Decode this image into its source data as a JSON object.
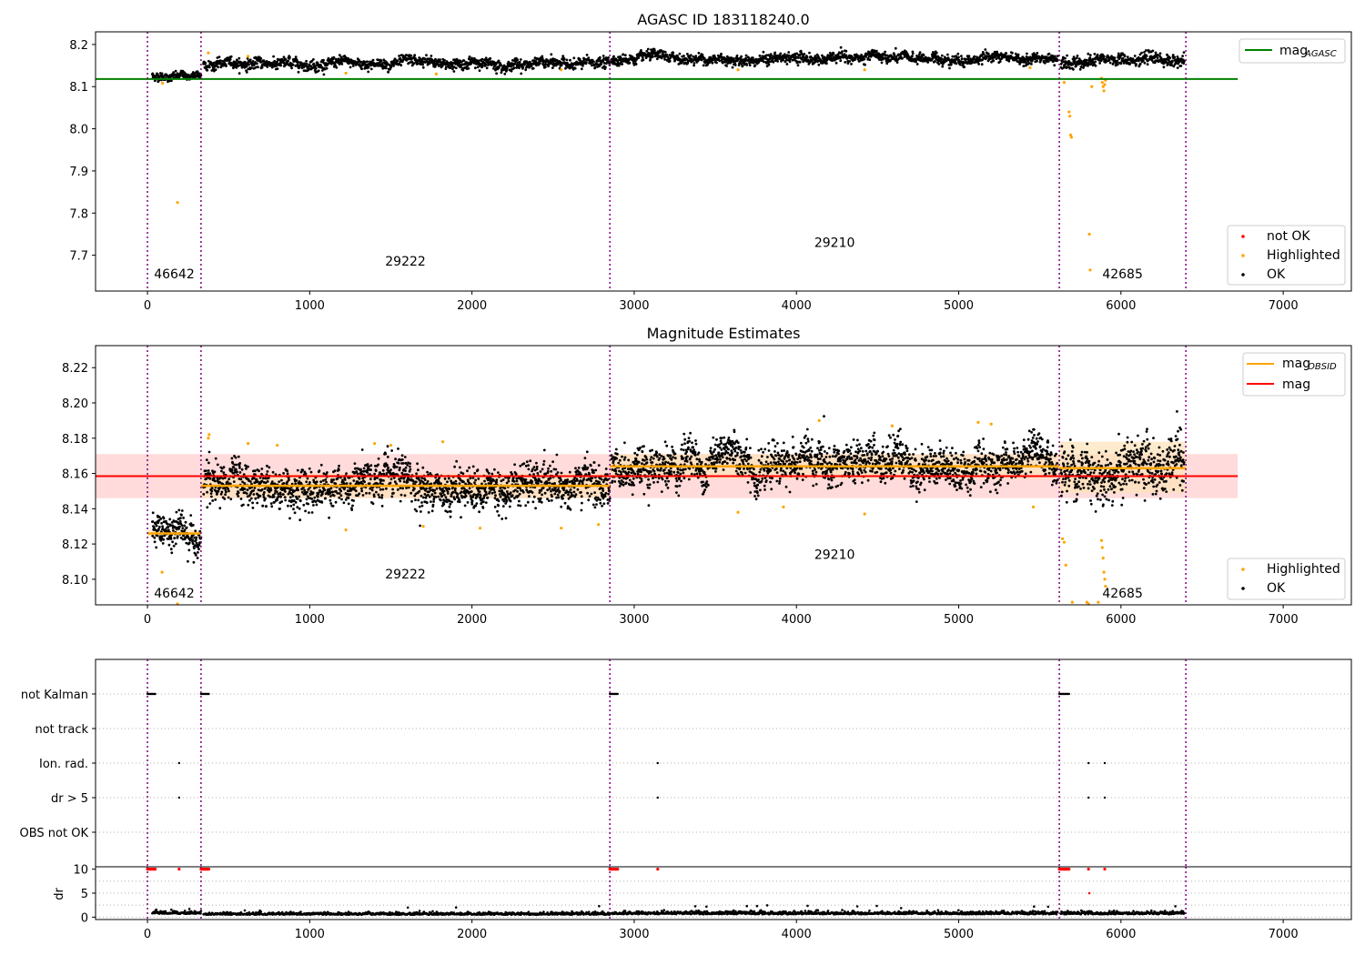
{
  "colors": {
    "ok": "#000000",
    "highlighted": "#ffa500",
    "not_ok": "#ff0000",
    "agasc_line": "#008000",
    "mean_line": "#ff0000",
    "obsid_line": "#ffa500",
    "vline": "#800080",
    "band_mean": "#ffcccc",
    "band_obsid": "#fde3b8"
  },
  "chart_data": [
    {
      "type": "scatter",
      "title": "AGASC ID 183118240.0",
      "xlim": [
        -320,
        7420
      ],
      "ylim": [
        7.615,
        8.23
      ],
      "xticks": [
        0,
        1000,
        2000,
        3000,
        4000,
        5000,
        6000,
        7000
      ],
      "yticks": [
        7.7,
        7.8,
        7.9,
        8.0,
        8.1,
        8.2
      ],
      "ytick_labels": [
        "7.7",
        "7.8",
        "7.9",
        "8.0",
        "8.1",
        "8.2"
      ],
      "reference_line": {
        "name": "mag",
        "subscript": "AGASC",
        "value": 8.118,
        "x_range": [
          -320,
          6720
        ]
      },
      "legend_upper": [
        {
          "label": "mag",
          "subscript": "AGASC",
          "kind": "line",
          "color_key": "agasc_line"
        }
      ],
      "legend_lower": [
        {
          "label": "not OK",
          "kind": "marker",
          "color_key": "not_ok"
        },
        {
          "label": "Highlighted",
          "kind": "marker",
          "color_key": "highlighted"
        },
        {
          "label": "OK",
          "kind": "marker",
          "color_key": "ok"
        }
      ],
      "obsid_boundaries": [
        0,
        330,
        2850,
        5620,
        6400
      ],
      "obsid_labels": [
        {
          "text": "46642",
          "x": 165,
          "y": 7.645
        },
        {
          "text": "29222",
          "x": 1590,
          "y": 7.675
        },
        {
          "text": "29210",
          "x": 4235,
          "y": 7.72
        },
        {
          "text": "42685",
          "x": 6010,
          "y": 7.645
        }
      ],
      "segments": [
        {
          "obsid": "46642",
          "x": [
            30,
            330
          ],
          "level": 8.125,
          "noise": 0.008
        },
        {
          "obsid": "29222",
          "x": [
            345,
            2850
          ],
          "level": 8.155,
          "noise": 0.01
        },
        {
          "obsid": "29210",
          "x": [
            2860,
            5610
          ],
          "level": 8.166,
          "noise": 0.01
        },
        {
          "obsid": "42685",
          "x": [
            5630,
            6390
          ],
          "level": 8.163,
          "noise": 0.011
        }
      ],
      "highlighted_points": [
        {
          "x": 185,
          "y": 7.825
        },
        {
          "x": 93,
          "y": 8.108
        },
        {
          "x": 375,
          "y": 8.18
        },
        {
          "x": 620,
          "y": 8.172
        },
        {
          "x": 1223,
          "y": 8.132
        },
        {
          "x": 1780,
          "y": 8.13
        },
        {
          "x": 2550,
          "y": 8.14
        },
        {
          "x": 3640,
          "y": 8.14
        },
        {
          "x": 4420,
          "y": 8.14
        },
        {
          "x": 5440,
          "y": 8.145
        },
        {
          "x": 5650,
          "y": 8.11
        },
        {
          "x": 5680,
          "y": 8.04
        },
        {
          "x": 5685,
          "y": 8.03
        },
        {
          "x": 5690,
          "y": 7.985
        },
        {
          "x": 5695,
          "y": 7.98
        },
        {
          "x": 5805,
          "y": 7.75
        },
        {
          "x": 5810,
          "y": 7.665
        },
        {
          "x": 5820,
          "y": 8.1
        },
        {
          "x": 5880,
          "y": 8.12
        },
        {
          "x": 5885,
          "y": 8.11
        },
        {
          "x": 5890,
          "y": 8.1
        },
        {
          "x": 5895,
          "y": 8.09
        },
        {
          "x": 5900,
          "y": 8.105
        },
        {
          "x": 5905,
          "y": 8.115
        }
      ]
    },
    {
      "type": "scatter",
      "title": "Magnitude Estimates",
      "xlim": [
        -320,
        7420
      ],
      "ylim": [
        8.0855,
        8.2325
      ],
      "xticks": [
        0,
        1000,
        2000,
        3000,
        4000,
        5000,
        6000,
        7000
      ],
      "yticks": [
        8.1,
        8.12,
        8.14,
        8.16,
        8.18,
        8.2,
        8.22
      ],
      "ytick_labels": [
        "8.10",
        "8.12",
        "8.14",
        "8.16",
        "8.18",
        "8.20",
        "8.22"
      ],
      "mean": {
        "name": "mag",
        "value": 8.1585,
        "band": [
          8.146,
          8.171
        ],
        "x_range": [
          -320,
          6720
        ]
      },
      "obsid_means": [
        {
          "x": [
            0,
            330
          ],
          "value": 8.126,
          "band": [
            8.124,
            8.128
          ]
        },
        {
          "x": [
            330,
            2850
          ],
          "value": 8.153,
          "band": [
            8.146,
            8.16
          ]
        },
        {
          "x": [
            2850,
            5620
          ],
          "value": 8.164,
          "band": [
            8.157,
            8.171
          ]
        },
        {
          "x": [
            5620,
            6400
          ],
          "value": 8.163,
          "band": [
            8.149,
            8.178
          ]
        }
      ],
      "legend_upper": [
        {
          "label": "mag",
          "subscript": "OBSID",
          "kind": "line",
          "color_key": "obsid_line"
        },
        {
          "label": "mag",
          "subscript": "",
          "kind": "line",
          "color_key": "mean_line"
        }
      ],
      "legend_lower": [
        {
          "label": "Highlighted",
          "kind": "marker",
          "color_key": "highlighted"
        },
        {
          "label": "OK",
          "kind": "marker",
          "color_key": "ok"
        }
      ],
      "obsid_boundaries": [
        0,
        330,
        2850,
        5620,
        6400
      ],
      "obsid_labels": [
        {
          "text": "46642",
          "x": 165,
          "y": 8.0895
        },
        {
          "text": "29222",
          "x": 1590,
          "y": 8.1005
        },
        {
          "text": "29210",
          "x": 4235,
          "y": 8.1115
        },
        {
          "text": "42685",
          "x": 6010,
          "y": 8.0895
        }
      ],
      "segments": [
        {
          "obsid": "46642",
          "x": [
            30,
            330
          ],
          "level": 8.126,
          "noise": 0.008
        },
        {
          "obsid": "29222",
          "x": [
            345,
            2850
          ],
          "level": 8.153,
          "noise": 0.009
        },
        {
          "obsid": "29210",
          "x": [
            2860,
            5610
          ],
          "level": 8.165,
          "noise": 0.009
        },
        {
          "obsid": "42685",
          "x": [
            5630,
            6390
          ],
          "level": 8.163,
          "noise": 0.012
        }
      ],
      "highlighted_points": [
        {
          "x": 90,
          "y": 8.104
        },
        {
          "x": 185,
          "y": 8.086
        },
        {
          "x": 375,
          "y": 8.18
        },
        {
          "x": 380,
          "y": 8.182
        },
        {
          "x": 620,
          "y": 8.177
        },
        {
          "x": 800,
          "y": 8.176
        },
        {
          "x": 1223,
          "y": 8.128
        },
        {
          "x": 1400,
          "y": 8.177
        },
        {
          "x": 1500,
          "y": 8.176
        },
        {
          "x": 1700,
          "y": 8.13
        },
        {
          "x": 1820,
          "y": 8.178
        },
        {
          "x": 2050,
          "y": 8.129
        },
        {
          "x": 2550,
          "y": 8.129
        },
        {
          "x": 2780,
          "y": 8.131
        },
        {
          "x": 3640,
          "y": 8.138
        },
        {
          "x": 3920,
          "y": 8.141
        },
        {
          "x": 4140,
          "y": 8.19
        },
        {
          "x": 4420,
          "y": 8.137
        },
        {
          "x": 4590,
          "y": 8.187
        },
        {
          "x": 5120,
          "y": 8.189
        },
        {
          "x": 5200,
          "y": 8.188
        },
        {
          "x": 5460,
          "y": 8.141
        },
        {
          "x": 5640,
          "y": 8.123
        },
        {
          "x": 5650,
          "y": 8.121
        },
        {
          "x": 5660,
          "y": 8.108
        },
        {
          "x": 5700,
          "y": 8.087
        },
        {
          "x": 5790,
          "y": 8.087
        },
        {
          "x": 5800,
          "y": 8.086
        },
        {
          "x": 5860,
          "y": 8.087
        },
        {
          "x": 5880,
          "y": 8.122
        },
        {
          "x": 5885,
          "y": 8.118
        },
        {
          "x": 5890,
          "y": 8.112
        },
        {
          "x": 5895,
          "y": 8.104
        },
        {
          "x": 5900,
          "y": 8.1
        },
        {
          "x": 5905,
          "y": 8.096
        }
      ]
    },
    {
      "type": "scatter",
      "title": "",
      "xlim": [
        -320,
        7420
      ],
      "categories": [
        "not Kalman",
        "not track",
        "Ion. rad.",
        "dr > 5",
        "OBS not OK"
      ],
      "flags": {
        "not Kalman": [
          {
            "x": [
              0,
              50
            ]
          },
          {
            "x": [
              330,
              380
            ]
          },
          {
            "x": [
              2850,
              2900
            ]
          },
          {
            "x": [
              5620,
              5680
            ]
          }
        ],
        "not track": [],
        "Ion. rad.": [
          {
            "x": [
              195,
              195
            ]
          },
          {
            "x": [
              3145,
              3145
            ]
          },
          {
            "x": [
              5800,
              5800
            ]
          },
          {
            "x": [
              5900,
              5900
            ]
          }
        ],
        "dr > 5": [
          {
            "x": [
              195,
              195
            ]
          },
          {
            "x": [
              3145,
              3145
            ]
          },
          {
            "x": [
              5800,
              5800
            ]
          },
          {
            "x": [
              5900,
              5900
            ]
          }
        ],
        "OBS not OK": []
      },
      "obsid_boundaries": [
        0,
        330,
        2850,
        5620,
        6400
      ]
    },
    {
      "type": "scatter",
      "title": "",
      "ylabel": "dr",
      "xlim": [
        -320,
        7420
      ],
      "ylim": [
        -0.5,
        10.5
      ],
      "yticks": [
        0,
        5,
        10
      ],
      "ytick_labels": [
        "0",
        "5",
        "10"
      ],
      "xticks": [
        0,
        1000,
        2000,
        3000,
        4000,
        5000,
        6000,
        7000
      ],
      "ceiling_points_not_ok": [
        {
          "x": [
            0,
            50
          ]
        },
        {
          "x": [
            330,
            380
          ]
        },
        {
          "x": [
            2850,
            2900
          ]
        },
        {
          "x": [
            5620,
            5680
          ]
        },
        {
          "x": [
            195,
            195
          ]
        },
        {
          "x": [
            3145,
            3145
          ]
        },
        {
          "x": [
            5800,
            5800
          ]
        },
        {
          "x": [
            5900,
            5900
          ]
        }
      ],
      "extra_points_not_ok": [
        {
          "x": 5805,
          "y": 5
        }
      ],
      "segments": [
        {
          "x": [
            30,
            330
          ],
          "level": 0.7,
          "noise": 0.3
        },
        {
          "x": [
            345,
            2850
          ],
          "level": 0.5,
          "noise": 0.25
        },
        {
          "x": [
            2860,
            5610
          ],
          "level": 0.6,
          "noise": 0.3
        },
        {
          "x": [
            5630,
            6390
          ],
          "level": 0.6,
          "noise": 0.3
        }
      ],
      "obsid_boundaries": [
        0,
        330,
        2850,
        5620,
        6400
      ]
    }
  ]
}
